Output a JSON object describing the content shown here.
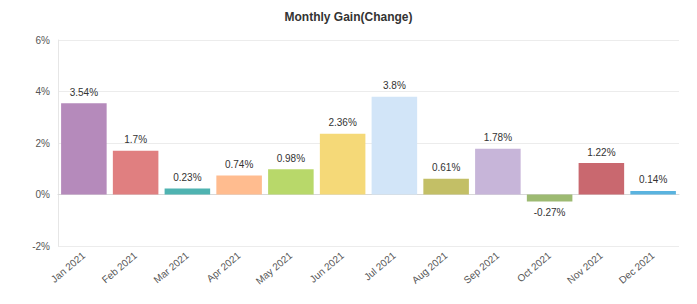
{
  "chart_data": {
    "type": "bar",
    "title": "Monthly Gain(Change)",
    "categories": [
      "Jan 2021",
      "Feb 2021",
      "Mar 2021",
      "Apr 2021",
      "May 2021",
      "Jun 2021",
      "Jul 2021",
      "Aug 2021",
      "Sep 2021",
      "Oct 2021",
      "Nov 2021",
      "Dec 2021"
    ],
    "values": [
      3.54,
      1.7,
      0.23,
      0.74,
      0.98,
      2.36,
      3.8,
      0.61,
      1.78,
      -0.27,
      1.22,
      0.14
    ],
    "value_labels": [
      "3.54%",
      "1.7%",
      "0.23%",
      "0.74%",
      "0.98%",
      "2.36%",
      "3.8%",
      "0.61%",
      "1.78%",
      "-0.27%",
      "1.22%",
      "0.14%"
    ],
    "colors": [
      "#b58abb",
      "#e07f80",
      "#4fb3b1",
      "#ffbc8f",
      "#b8d86a",
      "#f5d978",
      "#d2e5f8",
      "#c3bf66",
      "#c7b5d9",
      "#9dba72",
      "#c9686f",
      "#5ab3df"
    ],
    "ylim": [
      -2,
      6
    ],
    "yticks": [
      {
        "value": -2,
        "label": "-2%"
      },
      {
        "value": 0,
        "label": "0%"
      },
      {
        "value": 2,
        "label": "2%"
      },
      {
        "value": 4,
        "label": "4%"
      },
      {
        "value": 6,
        "label": "6%"
      }
    ],
    "grid": true,
    "data_labels": true
  }
}
